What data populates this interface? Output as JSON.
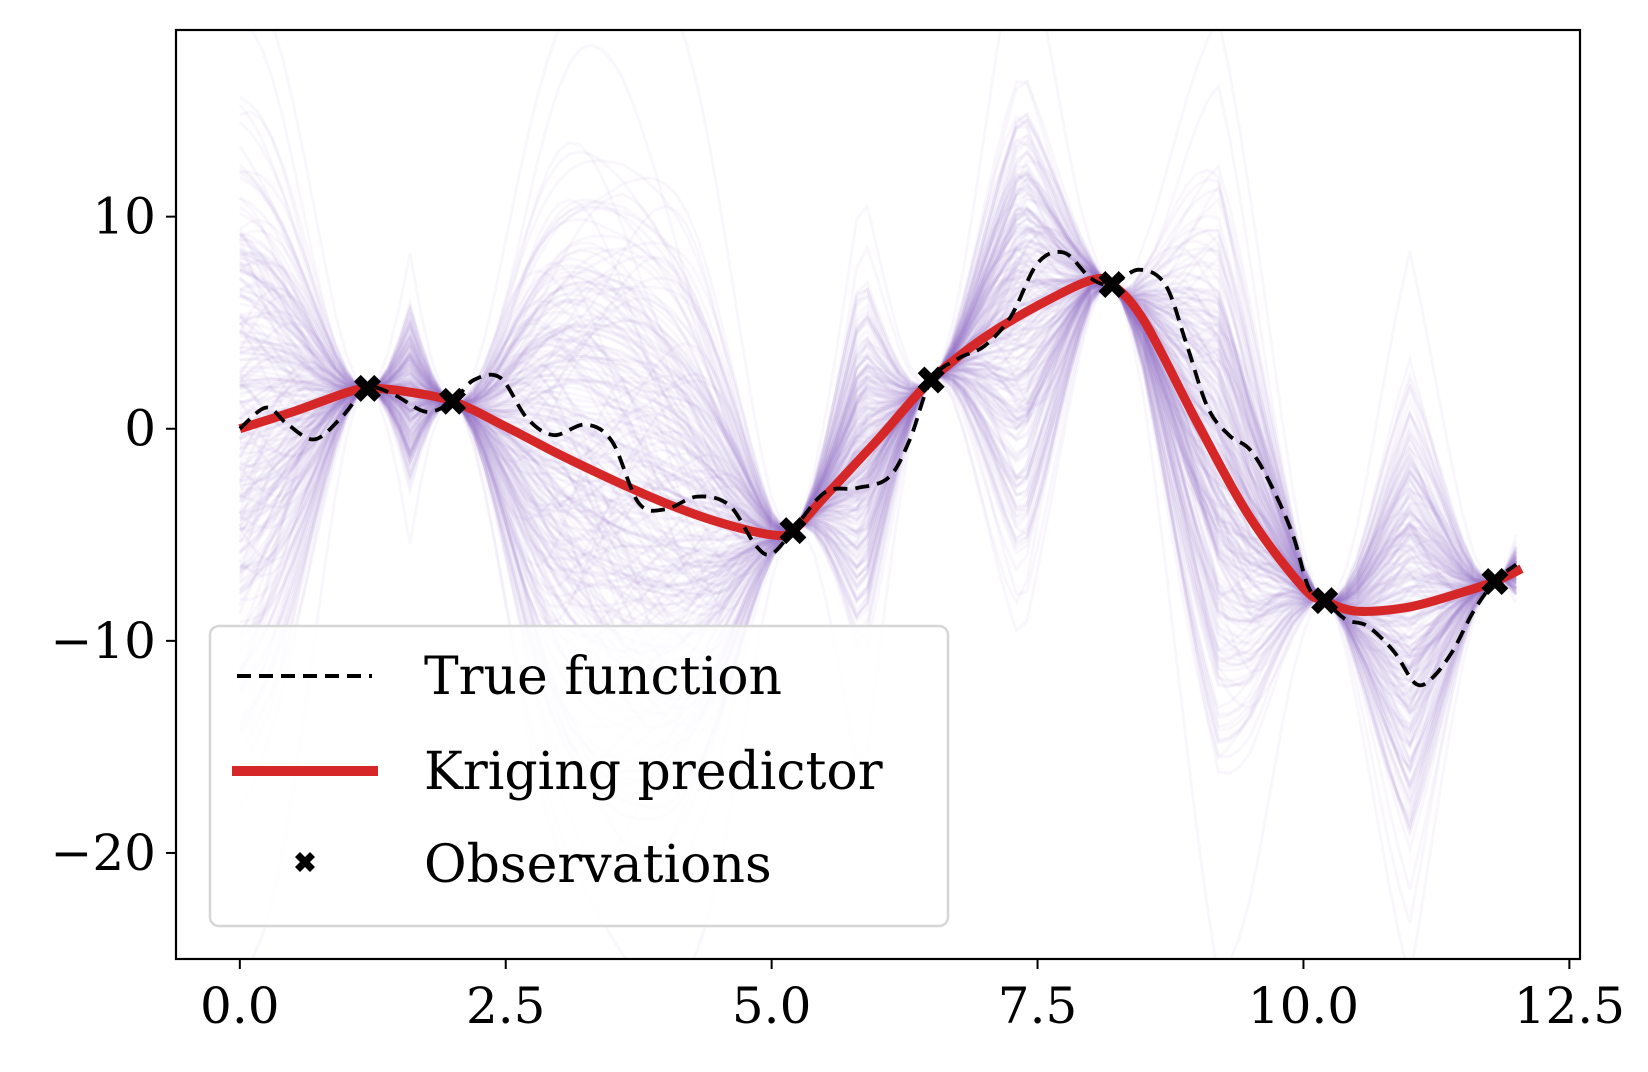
{
  "chart_data": {
    "type": "line",
    "title": "",
    "xlabel": "",
    "ylabel": "",
    "xlim": [
      -0.6,
      12.6
    ],
    "ylim": [
      -25,
      18.8
    ],
    "x_ticks": [
      0.0,
      2.5,
      5.0,
      7.5,
      10.0,
      12.5
    ],
    "x_tick_labels": [
      "0.0",
      "2.5",
      "5.0",
      "7.5",
      "10.0",
      "12.5"
    ],
    "y_ticks": [
      10,
      0,
      -10,
      -20
    ],
    "y_tick_labels": [
      "10",
      "0",
      "−10",
      "−20"
    ],
    "grid": false,
    "legend_position": "lower-left",
    "colors": {
      "samples": "#9b6fc6",
      "true_function": "#000000",
      "kriging": "#d62728",
      "observations": "#000000"
    },
    "observations": {
      "x": [
        1.2,
        2.0,
        5.2,
        6.5,
        8.2,
        10.2,
        11.8
      ],
      "y": [
        1.9,
        1.3,
        -4.8,
        2.3,
        6.8,
        -8.1,
        -7.2
      ]
    },
    "series": [
      {
        "name": "True function",
        "style": "dashed",
        "x": [
          0.0,
          0.25,
          0.45,
          0.7,
          0.95,
          1.2,
          1.45,
          1.75,
          2.0,
          2.2,
          2.45,
          2.7,
          2.95,
          3.25,
          3.5,
          3.75,
          4.0,
          4.3,
          4.6,
          4.85,
          5.0,
          5.2,
          5.5,
          5.8,
          6.1,
          6.3,
          6.5,
          6.75,
          7.0,
          7.25,
          7.5,
          7.75,
          8.0,
          8.2,
          8.45,
          8.7,
          8.9,
          9.1,
          9.3,
          9.5,
          9.7,
          9.9,
          10.05,
          10.2,
          10.4,
          10.6,
          10.85,
          11.05,
          11.2,
          11.4,
          11.6,
          11.8,
          12.0
        ],
        "y": [
          0.0,
          1.0,
          0.2,
          -0.5,
          0.5,
          1.9,
          1.6,
          0.8,
          1.3,
          2.3,
          2.4,
          0.5,
          -0.3,
          0.2,
          -0.6,
          -3.5,
          -3.8,
          -3.2,
          -3.6,
          -5.5,
          -5.9,
          -4.8,
          -3.0,
          -2.8,
          -2.3,
          -0.5,
          2.3,
          3.3,
          3.9,
          5.3,
          7.8,
          8.3,
          7.1,
          6.8,
          7.5,
          6.8,
          4.0,
          1.0,
          -0.3,
          -1.0,
          -2.7,
          -5.0,
          -7.5,
          -8.1,
          -9.0,
          -9.3,
          -10.5,
          -12.0,
          -11.8,
          -10.5,
          -8.6,
          -7.2,
          -6.4
        ]
      },
      {
        "name": "Kriging predictor",
        "style": "solid",
        "x": [
          0.0,
          0.5,
          1.0,
          1.2,
          1.5,
          2.0,
          2.5,
          3.0,
          3.5,
          4.0,
          4.5,
          5.0,
          5.2,
          5.5,
          6.0,
          6.5,
          7.0,
          7.5,
          8.0,
          8.2,
          8.5,
          9.0,
          9.5,
          10.0,
          10.2,
          10.5,
          11.0,
          11.5,
          11.8,
          12.05
        ],
        "y": [
          0.0,
          0.8,
          1.7,
          1.9,
          1.8,
          1.3,
          0.1,
          -1.2,
          -2.4,
          -3.5,
          -4.4,
          -5.0,
          -4.8,
          -3.2,
          -0.5,
          2.3,
          4.3,
          5.8,
          7.0,
          6.8,
          5.1,
          0.3,
          -4.2,
          -7.5,
          -8.1,
          -8.6,
          -8.4,
          -7.7,
          -7.2,
          -6.6
        ]
      },
      {
        "name": "Observations",
        "style": "markers"
      }
    ]
  }
}
